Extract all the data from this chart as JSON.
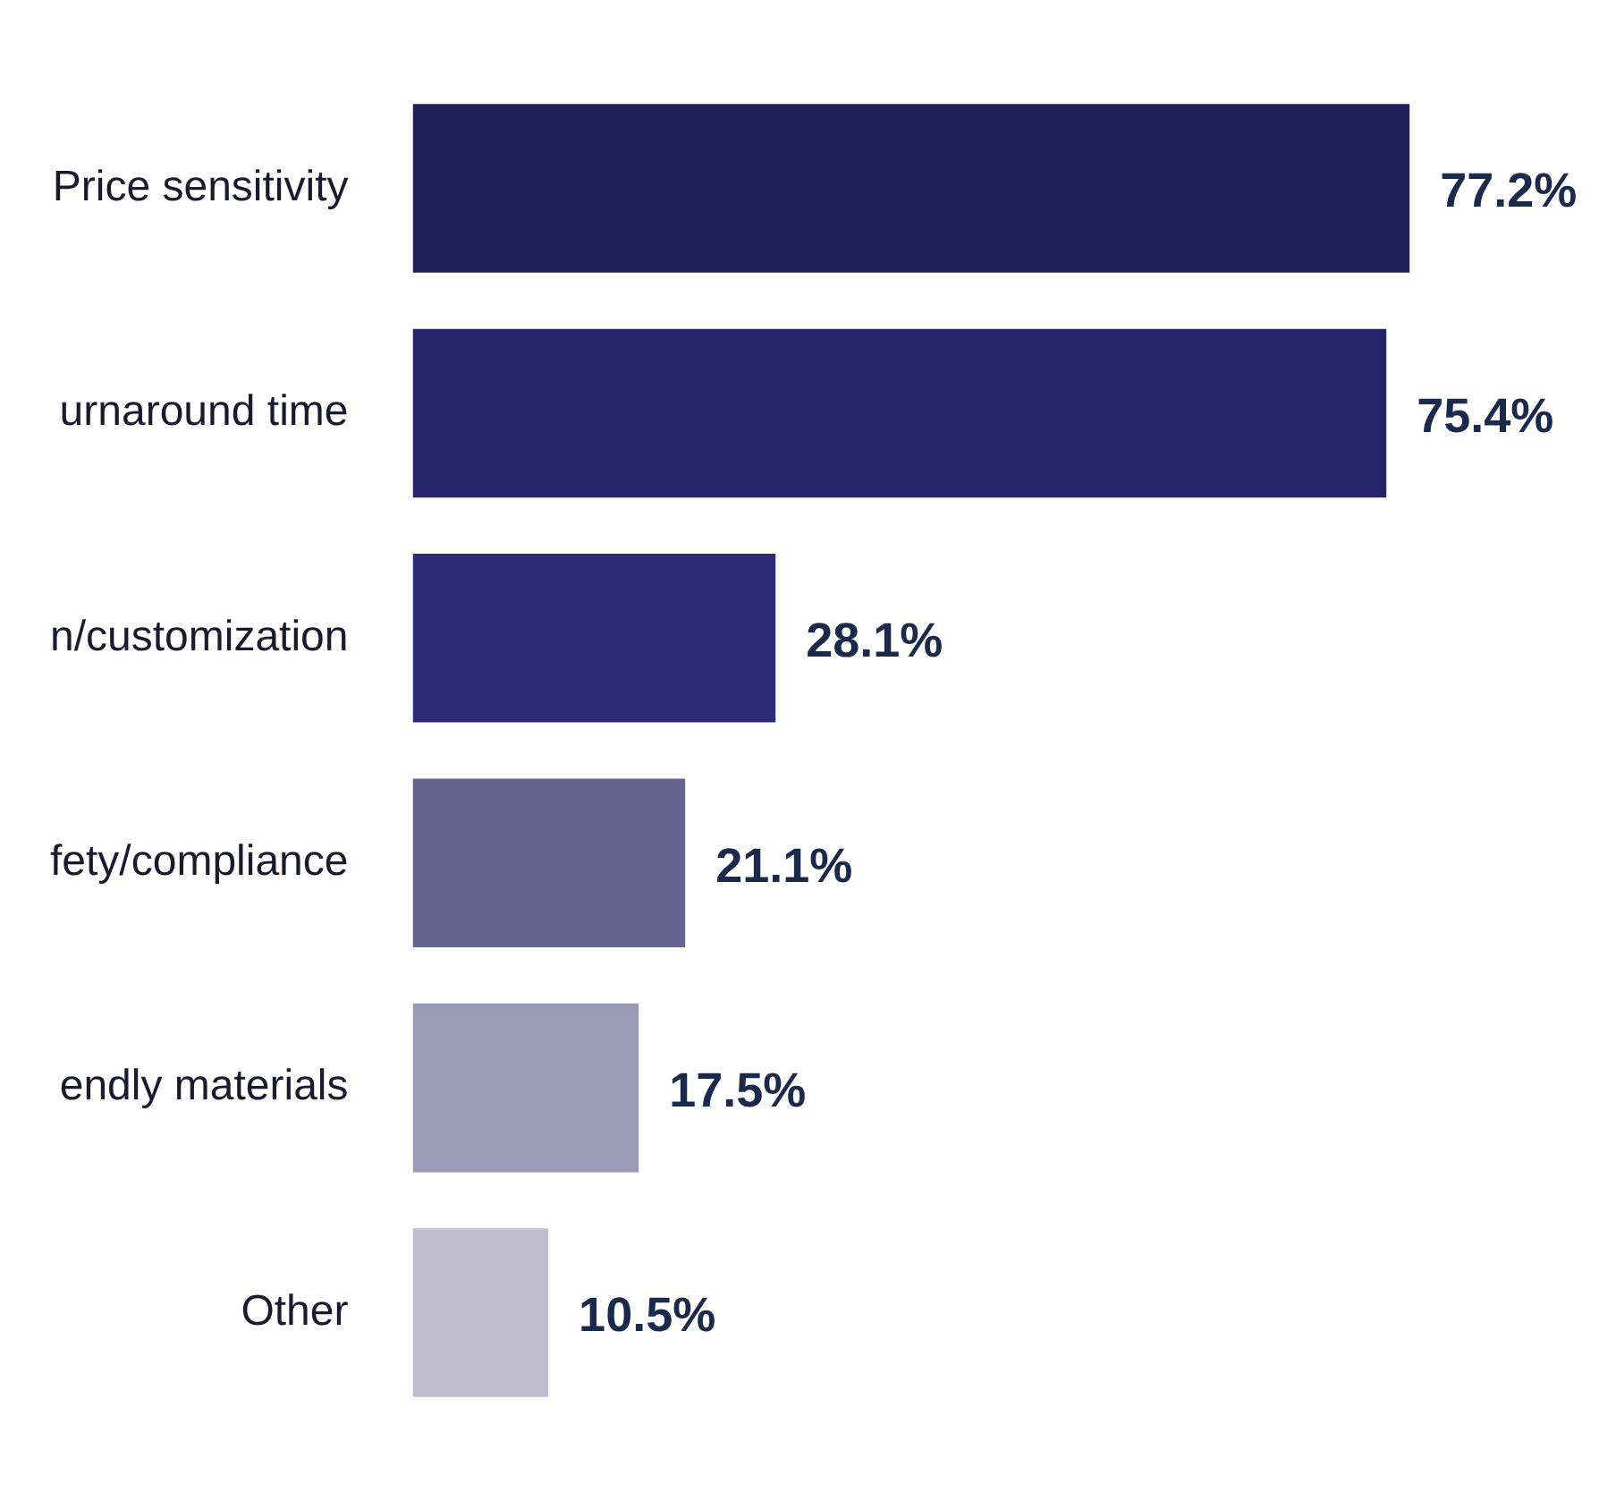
{
  "chart_data": {
    "type": "bar",
    "orientation": "horizontal",
    "categories": [
      "Price sensitivity",
      "urnaround time",
      "n/customization",
      "fety/compliance",
      "endly materials",
      "Other"
    ],
    "values": [
      77.2,
      75.4,
      28.1,
      21.1,
      17.5,
      10.5
    ],
    "colors": [
      "#221f58",
      "#29246a",
      "#2e2a74",
      "#66638e",
      "#9b99b5",
      "#bebcce"
    ],
    "value_labels": [
      "77.2%",
      "75.4%",
      "28.1%",
      "21.1%",
      "17.5%",
      "10.5%"
    ]
  }
}
